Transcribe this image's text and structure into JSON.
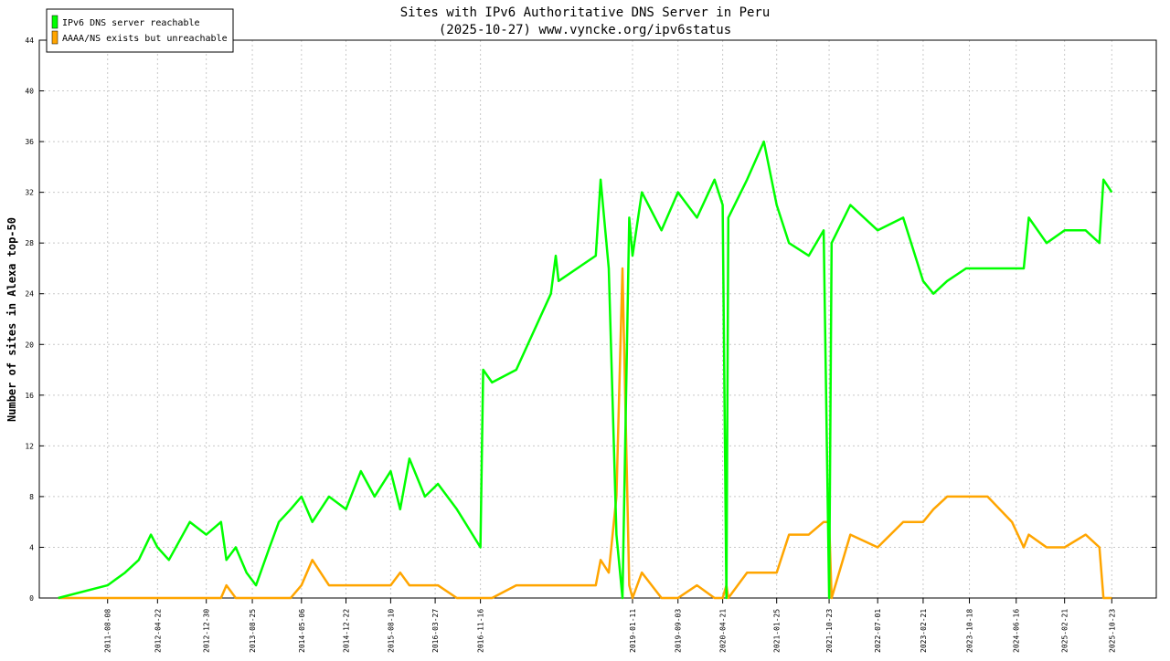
{
  "chart_data": {
    "type": "line",
    "title": "Sites with IPv6 Authoritative DNS Server in Peru",
    "subtitle": "(2025-10-27) www.vyncke.org/ipv6status",
    "y_label": "Number of sites in Alexa top-50",
    "x": [
      "2010-11-26",
      "2011-08-08",
      "2011-11-06",
      "2012-01-16",
      "2012-03-19",
      "2012-04-22",
      "2012-06-20",
      "2012-10-06",
      "2012-12-30",
      "2013-03-16",
      "2013-04-13",
      "2013-05-31",
      "2013-07-26",
      "2013-09-13",
      "2013-11-22",
      "2014-01-09",
      "2014-03-11",
      "2014-05-06",
      "2014-07-01",
      "2014-09-25",
      "2014-12-22",
      "2015-03-09",
      "2015-05-19",
      "2015-08-10",
      "2015-09-28",
      "2015-11-15",
      "2016-02-03",
      "2016-04-10",
      "2016-07-17",
      "2016-11-16",
      "2016-11-30",
      "2017-01-15",
      "2017-05-20",
      "2017-11-15",
      "2017-12-10",
      "2017-12-25",
      "2018-07-05",
      "2018-07-30",
      "2018-09-10",
      "2018-10-20",
      "2018-11-20",
      "2018-12-25",
      "2019-01-11",
      "2019-02-28",
      "2019-06-10",
      "2019-09-03",
      "2019-12-10",
      "2020-03-10",
      "2020-04-21",
      "2020-05-10",
      "2020-05-20",
      "2020-08-25",
      "2020-11-20",
      "2021-01-25",
      "2021-03-30",
      "2021-07-10",
      "2021-09-25",
      "2021-10-23",
      "2021-11-05",
      "2022-02-10",
      "2022-07-01",
      "2022-11-10",
      "2023-02-21",
      "2023-04-15",
      "2023-06-25",
      "2023-10-01",
      "2024-01-20",
      "2024-05-25",
      "2024-07-25",
      "2024-08-20",
      "2024-11-20",
      "2025-02-21",
      "2025-06-10",
      "2025-08-20",
      "2025-09-10",
      "2025-10-23"
    ],
    "series": [
      {
        "name": "IPv6 DNS server reachable",
        "color": "#00ff00",
        "values": [
          0,
          1,
          2,
          3,
          5,
          4,
          3,
          6,
          5,
          6,
          3,
          4,
          2,
          1,
          4,
          6,
          7,
          8,
          6,
          8,
          7,
          10,
          8,
          10,
          7,
          11,
          8,
          9,
          7,
          4,
          18,
          17,
          18,
          24,
          27,
          25,
          27,
          33,
          26,
          5,
          0,
          30,
          27,
          32,
          29,
          32,
          30,
          33,
          31,
          0,
          30,
          33,
          36,
          31,
          28,
          27,
          29,
          0,
          28,
          31,
          29,
          30,
          25,
          24,
          25,
          26,
          26,
          26,
          26,
          30,
          28,
          29,
          29,
          28,
          33,
          32
        ]
      },
      {
        "name": "AAAA/NS exists but unreachable",
        "color": "#ffa500",
        "values": [
          0,
          0,
          0,
          0,
          0,
          0,
          0,
          0,
          0,
          0,
          1,
          0,
          0,
          0,
          0,
          0,
          0,
          1,
          3,
          1,
          1,
          1,
          1,
          1,
          2,
          1,
          1,
          1,
          0,
          0,
          0,
          0,
          1,
          1,
          1,
          1,
          1,
          3,
          2,
          8,
          26,
          1,
          0,
          2,
          0,
          0,
          1,
          0,
          0,
          1,
          0,
          2,
          2,
          2,
          5,
          5,
          6,
          6,
          0,
          5,
          4,
          6,
          6,
          7,
          8,
          8,
          8,
          6,
          4,
          5,
          4,
          4,
          5,
          4,
          0,
          0
        ]
      }
    ],
    "xlim": [
      "2010-08-20",
      "2026-06-10"
    ],
    "xticks": [
      "2011-08-08",
      "2012-04-22",
      "2012-12-30",
      "2013-08-25",
      "2014-05-06",
      "2014-12-22",
      "2015-08-10",
      "2016-03-27",
      "2016-11-16",
      "2019-01-11",
      "2019-09-03",
      "2020-04-21",
      "2021-01-25",
      "2021-10-23",
      "2022-07-01",
      "2023-02-21",
      "2023-10-18",
      "2024-06-16",
      "2025-02-21",
      "2025-10-23"
    ],
    "ylim": [
      0,
      44
    ],
    "yticks": [
      0,
      4,
      8,
      12,
      16,
      20,
      24,
      28,
      32,
      36,
      40,
      44
    ],
    "grid": true,
    "legend": "top-left"
  }
}
